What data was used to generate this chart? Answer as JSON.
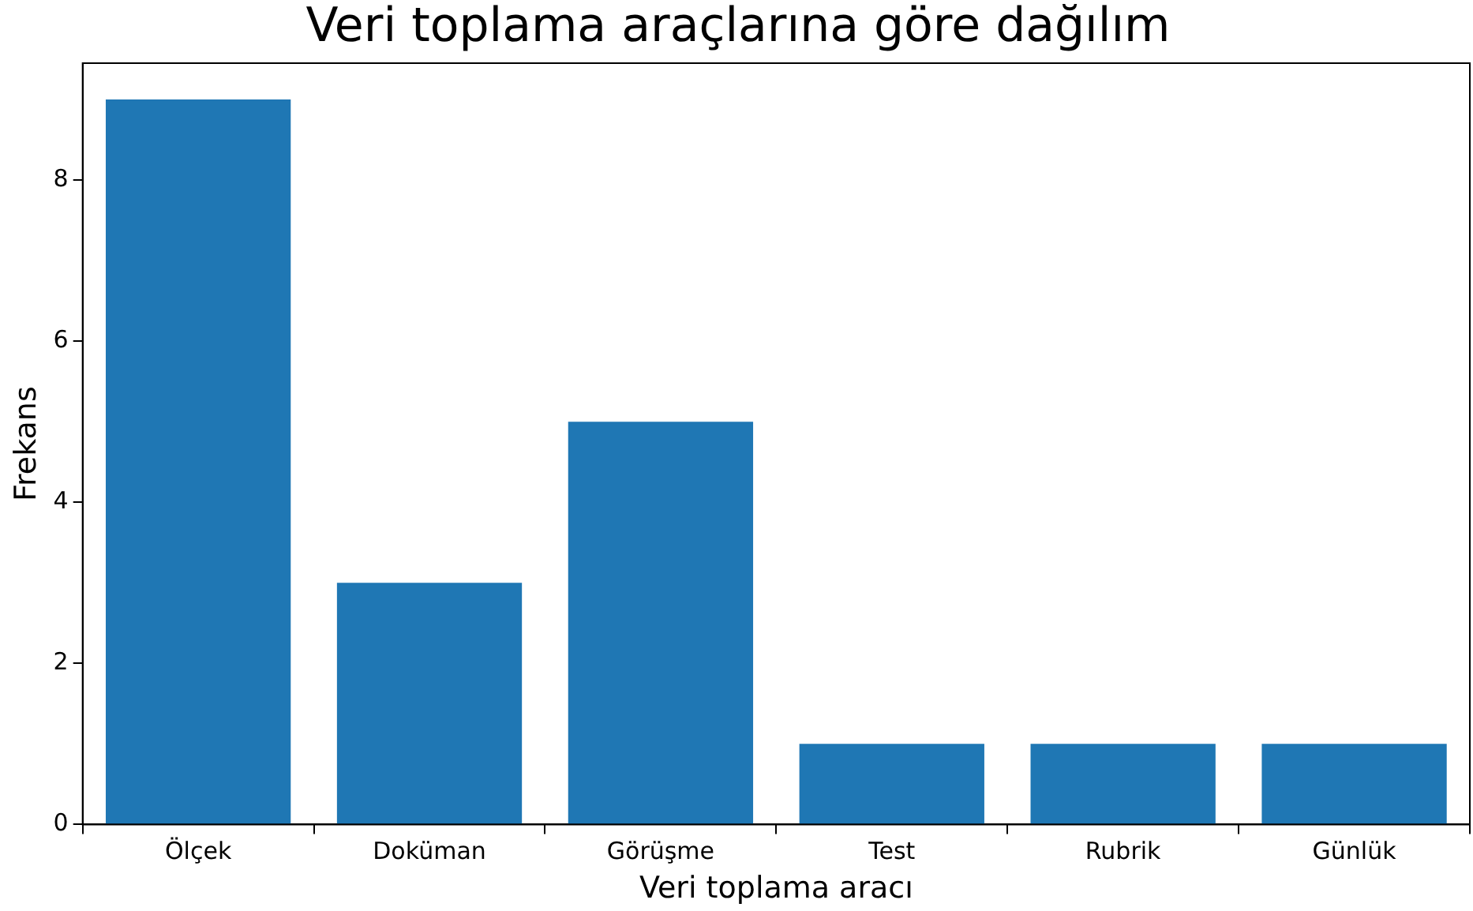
{
  "chart_data": {
    "type": "bar",
    "title": "Veri toplama araçlarına göre dağılım",
    "xlabel": "Veri toplama aracı",
    "ylabel": "Frekans",
    "categories": [
      "Ölçek",
      "Doküman",
      "Görüşme",
      "Test",
      "Rubrik",
      "Günlük"
    ],
    "values": [
      9,
      3,
      5,
      1,
      1,
      1
    ],
    "color": "#1f77b4",
    "ylim": [
      0,
      9.45
    ],
    "yticks": [
      0,
      2,
      4,
      6,
      8
    ],
    "grid": false,
    "legend": false
  }
}
